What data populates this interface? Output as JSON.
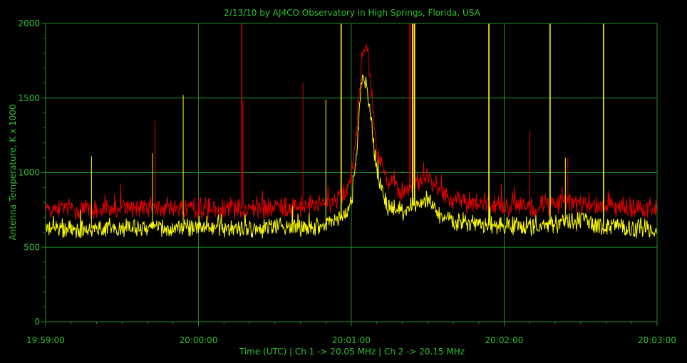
{
  "chart_data": {
    "type": "line",
    "title": "2/13/10  by  AJ4CO Observatory  in  High Springs, Florida, USA",
    "xlabel": "Time (UTC)  |  Ch 1 -> 20.05 MHz  |  Ch 2 -> 20.15 MHz",
    "ylabel": "Antenna Temperature, K x 1000",
    "ylim": [
      0,
      2000
    ],
    "xlim": [
      "19:59:00",
      "20:03:00"
    ],
    "y_ticks": [
      "0",
      "500",
      "1000",
      "1500",
      "2000"
    ],
    "x_ticks": [
      "19:59:00",
      "20:00:00",
      "20:01:00",
      "20:02:00",
      "20:03:00"
    ],
    "grid": true,
    "colors": {
      "grid": "#1f8f1f",
      "text": "#2ec02e",
      "ch1": "#e00000",
      "ch2": "#ffff00",
      "background": "#000000"
    },
    "series": [
      {
        "name": "Ch 1",
        "color": "#e00000",
        "x_seconds_after_start": [
          0,
          20,
          40,
          60,
          80,
          95,
          100,
          105,
          110,
          115,
          118,
          120,
          122,
          124,
          126,
          128,
          130,
          134,
          140,
          146,
          150,
          155,
          160,
          170,
          180,
          190,
          200,
          210,
          220,
          230,
          240
        ],
        "values": [
          760,
          755,
          765,
          760,
          760,
          770,
          775,
          780,
          790,
          820,
          860,
          930,
          1300,
          1750,
          1900,
          1550,
          1150,
          950,
          870,
          930,
          980,
          870,
          820,
          790,
          780,
          775,
          790,
          800,
          770,
          765,
          760
        ],
        "spikes": [
          {
            "t": 43,
            "v": 1350
          },
          {
            "t": 77,
            "v": 2000
          },
          {
            "t": 77.5,
            "v": 1480
          },
          {
            "t": 101,
            "v": 1600
          },
          {
            "t": 143,
            "v": 2000
          },
          {
            "t": 144.5,
            "v": 2000
          },
          {
            "t": 190,
            "v": 1280
          },
          {
            "t": 205,
            "v": 1100
          }
        ]
      },
      {
        "name": "Ch 2",
        "color": "#ffff00",
        "x_seconds_after_start": [
          0,
          20,
          40,
          60,
          80,
          95,
          100,
          105,
          110,
          115,
          118,
          120,
          122,
          124,
          126,
          128,
          130,
          134,
          140,
          146,
          150,
          155,
          160,
          170,
          180,
          190,
          200,
          210,
          220,
          230,
          240
        ],
        "values": [
          620,
          625,
          630,
          630,
          625,
          640,
          635,
          640,
          650,
          680,
          720,
          800,
          1100,
          1650,
          1600,
          1350,
          1000,
          780,
          740,
          800,
          820,
          700,
          660,
          650,
          640,
          640,
          660,
          680,
          640,
          630,
          625
        ],
        "spikes": [
          {
            "t": 18,
            "v": 1110
          },
          {
            "t": 42,
            "v": 1130
          },
          {
            "t": 54,
            "v": 1520
          },
          {
            "t": 110,
            "v": 1490
          },
          {
            "t": 116,
            "v": 2000
          },
          {
            "t": 144,
            "v": 2000
          },
          {
            "t": 144.8,
            "v": 2000
          },
          {
            "t": 174,
            "v": 2000
          },
          {
            "t": 198,
            "v": 2000
          },
          {
            "t": 204,
            "v": 1100
          },
          {
            "t": 219,
            "v": 2000
          }
        ]
      }
    ]
  }
}
